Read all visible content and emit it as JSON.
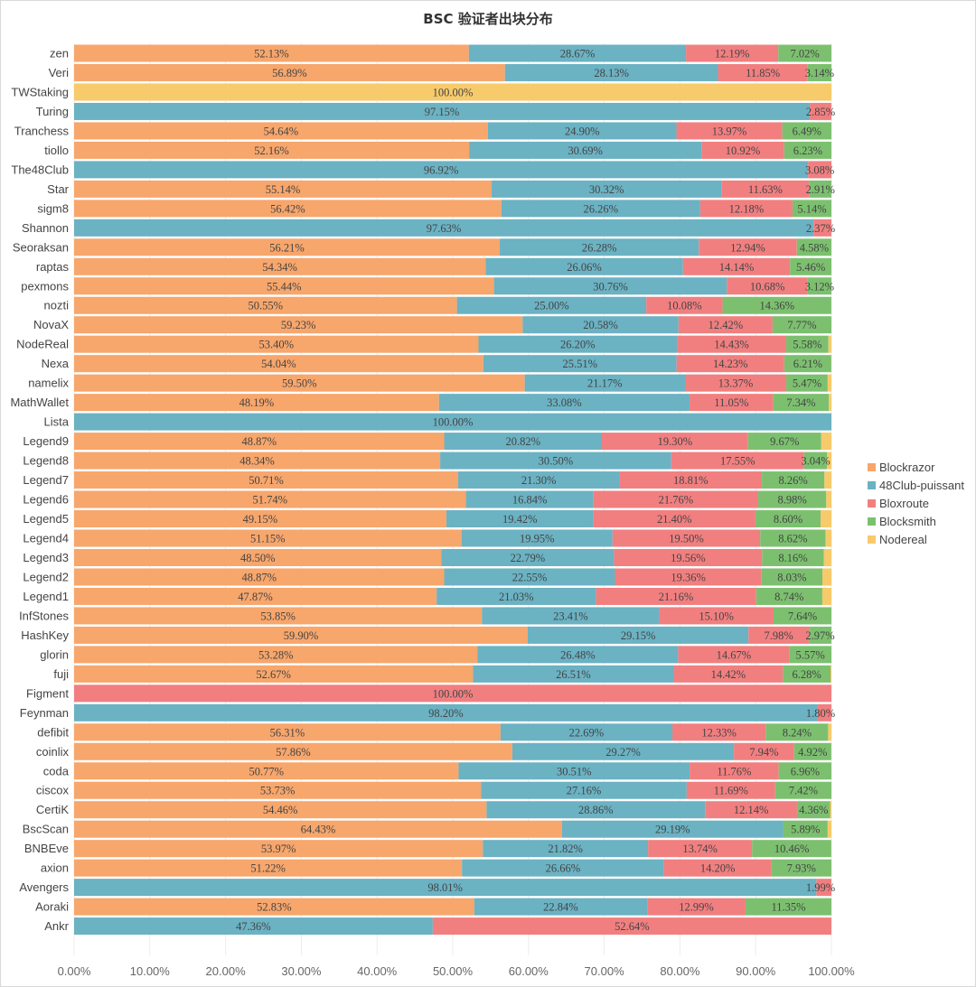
{
  "chart_data": {
    "type": "bar",
    "orientation": "horizontal",
    "stacked": true,
    "title": "BSC 验证者出块分布",
    "xlim": [
      0,
      100
    ],
    "x_ticks": [
      "0.00%",
      "10.00%",
      "20.00%",
      "30.00%",
      "40.00%",
      "50.00%",
      "60.00%",
      "70.00%",
      "80.00%",
      "90.00%",
      "100.00%"
    ],
    "grid": "vertical",
    "legend_position": "right",
    "series_names": [
      "Blockrazor",
      "48Club-puissant",
      "Bloxroute",
      "Blocksmith",
      "Nodereal"
    ],
    "colors": [
      "#F7A66C",
      "#6BB2C3",
      "#F17F80",
      "#7CC06F",
      "#F7CA6B"
    ],
    "categories": [
      "zen",
      "Veri",
      "TWStaking",
      "Turing",
      "Tranchess",
      "tiollo",
      "The48Club",
      "Star",
      "sigm8",
      "Shannon",
      "Seoraksan",
      "raptas",
      "pexmons",
      "nozti",
      "NovaX",
      "NodeReal",
      "Nexa",
      "namelix",
      "MathWallet",
      "Lista",
      "Legend9",
      "Legend8",
      "Legend7",
      "Legend6",
      "Legend5",
      "Legend4",
      "Legend3",
      "Legend2",
      "Legend1",
      "InfStones",
      "HashKey",
      "glorin",
      "fuji",
      "Figment",
      "Feynman",
      "defibit",
      "coinlix",
      "coda",
      "ciscox",
      "CertiK",
      "BscScan",
      "BNBEve",
      "axion",
      "Avengers",
      "Aoraki",
      "Ankr"
    ],
    "values": [
      [
        52.13,
        28.67,
        12.19,
        7.02,
        0
      ],
      [
        56.89,
        28.13,
        11.85,
        3.14,
        0
      ],
      [
        0,
        0,
        0,
        0,
        100
      ],
      [
        0,
        97.15,
        2.85,
        0,
        0
      ],
      [
        54.64,
        24.9,
        13.97,
        6.49,
        0
      ],
      [
        52.16,
        30.69,
        10.92,
        6.23,
        0
      ],
      [
        0,
        96.92,
        3.08,
        0,
        0
      ],
      [
        55.14,
        30.32,
        11.63,
        2.91,
        0
      ],
      [
        56.42,
        26.26,
        12.18,
        5.14,
        0
      ],
      [
        0,
        97.63,
        2.37,
        0,
        0
      ],
      [
        56.21,
        26.28,
        12.94,
        4.58,
        0
      ],
      [
        54.34,
        26.06,
        14.14,
        5.46,
        0
      ],
      [
        55.44,
        30.76,
        10.68,
        3.12,
        0
      ],
      [
        50.55,
        25.0,
        10.08,
        14.36,
        0
      ],
      [
        59.23,
        20.58,
        12.42,
        7.77,
        0
      ],
      [
        53.4,
        26.2,
        14.43,
        5.58,
        0.39
      ],
      [
        54.04,
        25.51,
        14.23,
        6.21,
        0.01
      ],
      [
        59.5,
        21.17,
        13.37,
        5.47,
        0.49
      ],
      [
        48.19,
        33.08,
        11.05,
        7.34,
        0.34
      ],
      [
        0,
        100,
        0,
        0,
        0
      ],
      [
        48.87,
        20.82,
        19.3,
        9.67,
        1.34
      ],
      [
        48.34,
        30.5,
        17.55,
        3.04,
        0.57
      ],
      [
        50.71,
        21.3,
        18.81,
        8.26,
        0.92
      ],
      [
        51.74,
        16.84,
        21.76,
        8.98,
        0.68
      ],
      [
        49.15,
        19.42,
        21.4,
        8.6,
        1.43
      ],
      [
        51.15,
        19.95,
        19.5,
        8.62,
        0.78
      ],
      [
        48.5,
        22.79,
        19.56,
        8.16,
        0.99
      ],
      [
        48.87,
        22.55,
        19.36,
        8.03,
        1.19
      ],
      [
        47.87,
        21.03,
        21.16,
        8.74,
        1.2
      ],
      [
        53.85,
        23.41,
        15.1,
        7.64,
        0
      ],
      [
        59.9,
        29.15,
        7.98,
        2.97,
        0
      ],
      [
        53.28,
        26.48,
        14.67,
        5.57,
        0
      ],
      [
        52.67,
        26.51,
        14.42,
        6.28,
        0.12
      ],
      [
        0,
        0,
        100,
        0,
        0
      ],
      [
        0,
        98.2,
        1.8,
        0,
        0
      ],
      [
        56.31,
        22.69,
        12.33,
        8.24,
        0.43
      ],
      [
        57.86,
        29.27,
        7.94,
        4.92,
        0
      ],
      [
        50.77,
        30.51,
        11.76,
        6.96,
        0
      ],
      [
        53.73,
        27.16,
        11.69,
        7.42,
        0
      ],
      [
        54.46,
        28.86,
        12.14,
        4.36,
        0.18
      ],
      [
        64.43,
        29.19,
        0,
        5.89,
        0.49
      ],
      [
        53.97,
        21.82,
        13.74,
        10.46,
        0.01
      ],
      [
        51.22,
        26.66,
        14.2,
        7.93,
        0
      ],
      [
        0,
        98.01,
        1.99,
        0,
        0
      ],
      [
        52.83,
        22.84,
        12.99,
        11.35,
        0
      ],
      [
        0,
        47.36,
        52.64,
        0,
        0
      ]
    ]
  }
}
